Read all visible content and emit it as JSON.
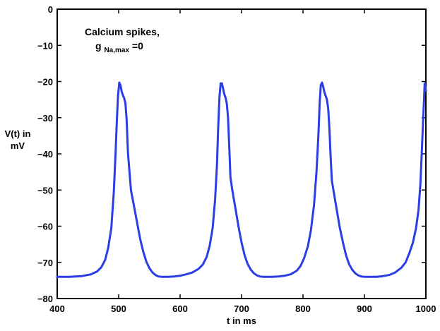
{
  "chart_data": {
    "type": "line",
    "title": "",
    "xlabel": "t in ms",
    "ylabel": [
      "V(t) in",
      "mV"
    ],
    "xlim": [
      400,
      1000
    ],
    "ylim": [
      -80,
      0
    ],
    "xticks": [
      400,
      500,
      600,
      700,
      800,
      900,
      1000
    ],
    "yticks": [
      0,
      -10,
      -20,
      -30,
      -40,
      -50,
      -60,
      -70,
      -80
    ],
    "grid": false,
    "legend": "none",
    "annotation": {
      "line1": "Calcium spikes,",
      "g_base": "g",
      "g_subscript": "Na,max",
      "g_rest": "=0"
    },
    "series": [
      {
        "color": "#2b3ee6",
        "x": [
          400,
          420,
          440,
          455,
          465,
          472,
          478,
          483,
          488,
          492,
          495,
          497,
          499,
          501,
          503,
          505,
          507,
          509,
          511,
          513,
          515,
          520,
          525,
          530,
          535,
          540,
          545,
          550,
          555,
          560,
          565,
          570,
          580,
          590,
          600,
          610,
          620,
          630,
          637,
          643,
          648,
          653,
          657,
          660,
          662,
          664,
          666,
          668,
          670,
          672,
          674,
          676,
          678,
          680,
          682,
          685,
          690,
          695,
          700,
          705,
          710,
          715,
          720,
          725,
          730,
          735,
          740,
          750,
          760,
          770,
          780,
          790,
          796,
          802,
          808,
          813,
          818,
          822,
          825,
          827,
          829,
          831,
          833,
          835,
          837,
          839,
          841,
          843,
          845,
          847,
          850,
          855,
          860,
          865,
          870,
          875,
          880,
          885,
          890,
          895,
          900,
          905,
          910,
          920,
          930,
          940,
          950,
          960,
          967,
          973,
          979,
          984,
          988,
          991,
          993,
          995,
          997,
          998,
          1000
        ],
        "y": [
          -74.0,
          -74.0,
          -73.8,
          -73.3,
          -72.5,
          -71.3,
          -69.3,
          -66.0,
          -60.5,
          -51.0,
          -40.0,
          -31.0,
          -24.0,
          -20.3,
          -21.0,
          -22.8,
          -23.8,
          -24.6,
          -26.0,
          -30.5,
          -39.5,
          -50.0,
          -54.5,
          -59.0,
          -63.5,
          -67.0,
          -69.8,
          -71.6,
          -72.8,
          -73.5,
          -73.9,
          -74.0,
          -74.0,
          -73.9,
          -73.7,
          -73.3,
          -72.8,
          -71.8,
          -70.6,
          -68.6,
          -65.5,
          -60.5,
          -52.5,
          -43.0,
          -33.0,
          -24.5,
          -20.5,
          -20.5,
          -22.0,
          -23.5,
          -24.5,
          -26.0,
          -30.0,
          -38.0,
          -46.5,
          -50.0,
          -55.0,
          -60.0,
          -64.5,
          -68.0,
          -70.5,
          -72.0,
          -73.0,
          -73.6,
          -73.9,
          -74.0,
          -74.0,
          -74.0,
          -73.9,
          -73.7,
          -73.3,
          -72.3,
          -71.0,
          -68.8,
          -65.5,
          -61.0,
          -54.0,
          -45.0,
          -35.0,
          -26.5,
          -21.0,
          -20.3,
          -21.5,
          -23.0,
          -24.0,
          -25.0,
          -27.5,
          -33.0,
          -41.0,
          -47.5,
          -50.5,
          -55.5,
          -60.5,
          -64.5,
          -68.0,
          -70.5,
          -72.0,
          -73.0,
          -73.6,
          -73.9,
          -74.0,
          -74.0,
          -74.0,
          -74.0,
          -73.8,
          -73.5,
          -72.8,
          -71.5,
          -70.0,
          -67.5,
          -64.5,
          -60.5,
          -55.5,
          -48.5,
          -41.0,
          -33.0,
          -25.0,
          -20.5,
          -22.5
        ]
      }
    ]
  }
}
